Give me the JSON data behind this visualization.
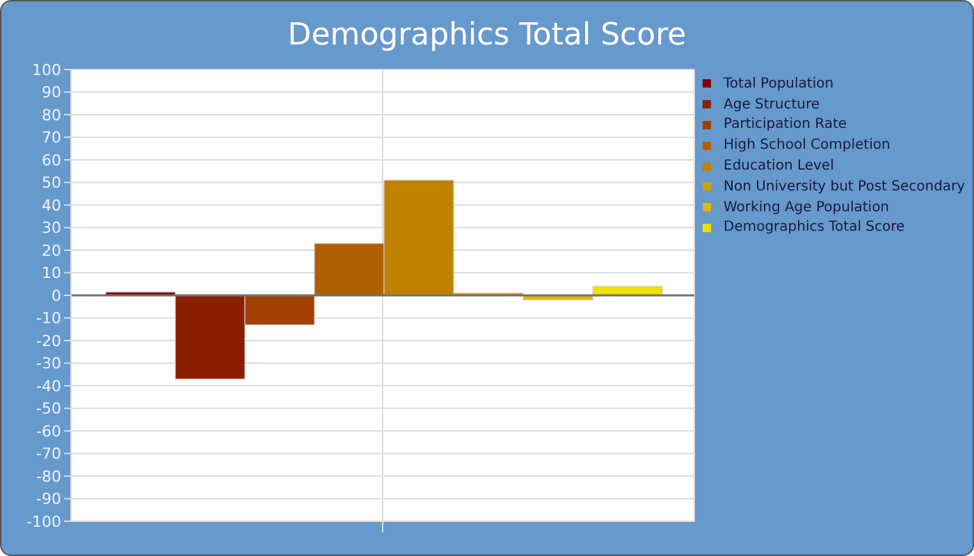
{
  "chart_data": {
    "type": "bar",
    "title": "Demographics Total Score",
    "categories": [
      null
    ],
    "series": [
      {
        "name": "Total Population",
        "color": "#800000",
        "values": [
          1.5
        ]
      },
      {
        "name": "Age Structure",
        "color": "#8b1e00",
        "values": [
          -37
        ]
      },
      {
        "name": "Participation Rate",
        "color": "#a04000",
        "values": [
          -13
        ]
      },
      {
        "name": "High School Completion",
        "color": "#b06000",
        "values": [
          23
        ]
      },
      {
        "name": "Education Level",
        "color": "#c08000",
        "values": [
          51
        ]
      },
      {
        "name": "Non University but Post Secondary",
        "color": "#d0a000",
        "values": [
          1
        ]
      },
      {
        "name": "Working Age Population",
        "color": "#e0b800",
        "values": [
          -2
        ]
      },
      {
        "name": "Demographics Total Score",
        "color": "#f0e000",
        "values": [
          4
        ]
      }
    ],
    "ylim": [
      -100,
      100
    ],
    "yticks": [
      -100,
      -90,
      -80,
      -70,
      -60,
      -50,
      -40,
      -30,
      -20,
      -10,
      0,
      10,
      20,
      30,
      40,
      50,
      60,
      70,
      80,
      90,
      100
    ],
    "grid": true,
    "legend": "right",
    "ref_lines": [
      {
        "axis": "y",
        "value": 0,
        "color": "#707070"
      }
    ]
  }
}
